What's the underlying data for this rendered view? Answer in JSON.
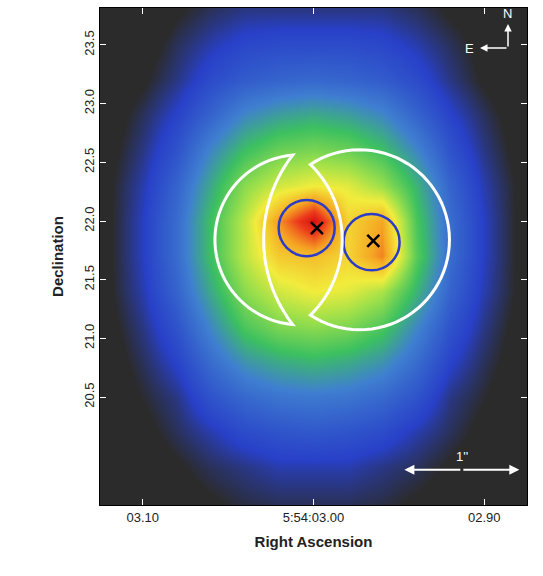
{
  "chart_data": {
    "type": "heatmap",
    "xlabel": "Right Ascension",
    "ylabel": "Declination",
    "xlim": [
      3.125,
      2.875
    ],
    "ylim": [
      19.58,
      23.815
    ],
    "xticks": [
      {
        "value": 3.1,
        "label": "03.10"
      },
      {
        "value": 3.0,
        "label": "5:54:03.00"
      },
      {
        "value": 2.9,
        "label": "02.90"
      }
    ],
    "yticks": [
      20.5,
      {
        "value": 21,
        "label": "21.0"
      },
      21.5,
      {
        "value": 22,
        "label": "22.0"
      },
      22.5,
      {
        "value": 23,
        "label": "23.0"
      },
      23.5
    ],
    "grid": false,
    "x": [
      3.12,
      3.1,
      3.08,
      3.06,
      3.04,
      3.02,
      3.0,
      2.98,
      2.96,
      2.94,
      2.92,
      2.9,
      2.88
    ],
    "y": [
      19.6,
      19.9,
      20.2,
      20.5,
      20.8,
      21.1,
      21.4,
      21.7,
      22.0,
      22.3,
      22.6,
      22.9,
      23.2,
      23.5,
      23.8
    ],
    "cells": [
      [
        0,
        0,
        0.3,
        0.5,
        0.7,
        0.8,
        0.8,
        0.8,
        0.7,
        0.5,
        0.3,
        0,
        0
      ],
      [
        0,
        0.2,
        0.5,
        0.8,
        1,
        1.2,
        1.2,
        1.2,
        1,
        0.8,
        0.5,
        0.2,
        0
      ],
      [
        0.1,
        0.4,
        0.8,
        1.2,
        1.6,
        1.8,
        1.9,
        1.8,
        1.6,
        1.2,
        0.8,
        0.4,
        0.1
      ],
      [
        0.2,
        0.6,
        1,
        1.8,
        2.3,
        2.6,
        2.7,
        2.6,
        2.3,
        1.8,
        1,
        0.6,
        0.2
      ],
      [
        0.3,
        0.8,
        1.4,
        2.4,
        3.2,
        3.6,
        3.8,
        3.6,
        3.2,
        2.4,
        1.4,
        0.8,
        0.3
      ],
      [
        0.4,
        1,
        1.8,
        3,
        4.2,
        4.8,
        5,
        4.8,
        4.2,
        3,
        1.8,
        1,
        0.4
      ],
      [
        0.5,
        1.2,
        2.2,
        3.6,
        5,
        5.8,
        6.2,
        6,
        5.4,
        3.8,
        2.2,
        1.2,
        0.5
      ],
      [
        0.5,
        1.3,
        2.4,
        4,
        5.6,
        6.8,
        7,
        6.6,
        7.8,
        4.4,
        2.4,
        1.3,
        0.5
      ],
      [
        0.5,
        1.3,
        2.4,
        4,
        5.6,
        7.6,
        9.5,
        6.6,
        7.4,
        4.2,
        2.4,
        1.3,
        0.5
      ],
      [
        0.5,
        1.2,
        2.2,
        3.6,
        5,
        5.8,
        6.2,
        6,
        5.2,
        3.8,
        2.2,
        1.2,
        0.5
      ],
      [
        0.4,
        1,
        1.8,
        3,
        4,
        4.6,
        4.8,
        4.6,
        4,
        3,
        1.8,
        1,
        0.4
      ],
      [
        0.3,
        0.8,
        1.4,
        2.2,
        3,
        3.4,
        3.6,
        3.4,
        3,
        2.2,
        1.4,
        0.8,
        0.3
      ],
      [
        0.2,
        0.5,
        1,
        1.6,
        2,
        2.2,
        2.3,
        2.2,
        2,
        1.6,
        1,
        0.5,
        0.2
      ],
      [
        0,
        0.3,
        0.8,
        1.2,
        1.5,
        1.6,
        1.6,
        1.6,
        1.5,
        1.2,
        0.8,
        0.4,
        0
      ],
      [
        0,
        0,
        0.5,
        0.8,
        1,
        1,
        1,
        1,
        1,
        0.8,
        0.5,
        0.3,
        0
      ]
    ],
    "sources": {
      "type": "scatter",
      "marker": "x",
      "color": "#000000",
      "x": [
        2.998,
        2.965
      ],
      "y": [
        21.94,
        21.83
      ]
    },
    "apertures": {
      "color": "#2c3cc8",
      "items": [
        {
          "ra": 3.004,
          "dec": 21.94,
          "r_ra": 0.0164,
          "r_dec": 0.24
        },
        {
          "ra": 2.966,
          "dec": 21.82,
          "r_ra": 0.0164,
          "r_dec": 0.24
        }
      ]
    },
    "regions": {
      "color": "#ffffff",
      "items": [
        {
          "ra": 3.008,
          "dec": 21.84,
          "r_ra": 0.0497,
          "r_dec": 0.724,
          "cut": {
            "ra": 2.95,
            "dec": 21.84,
            "r_ra": 0.0807,
            "r_dec": 1.175
          }
        },
        {
          "ra": 2.973,
          "dec": 21.84,
          "r_ra": 0.0526,
          "r_dec": 0.767,
          "cut": {
            "ra": 3.049,
            "dec": 21.84,
            "r_ra": 0.0614,
            "r_dec": 0.894
          }
        }
      ]
    },
    "compass": {
      "north": "N",
      "east": "E"
    },
    "scale_bar": {
      "label": "1''",
      "x": [
        2.9468,
        2.8795
      ],
      "y": 19.88
    }
  }
}
